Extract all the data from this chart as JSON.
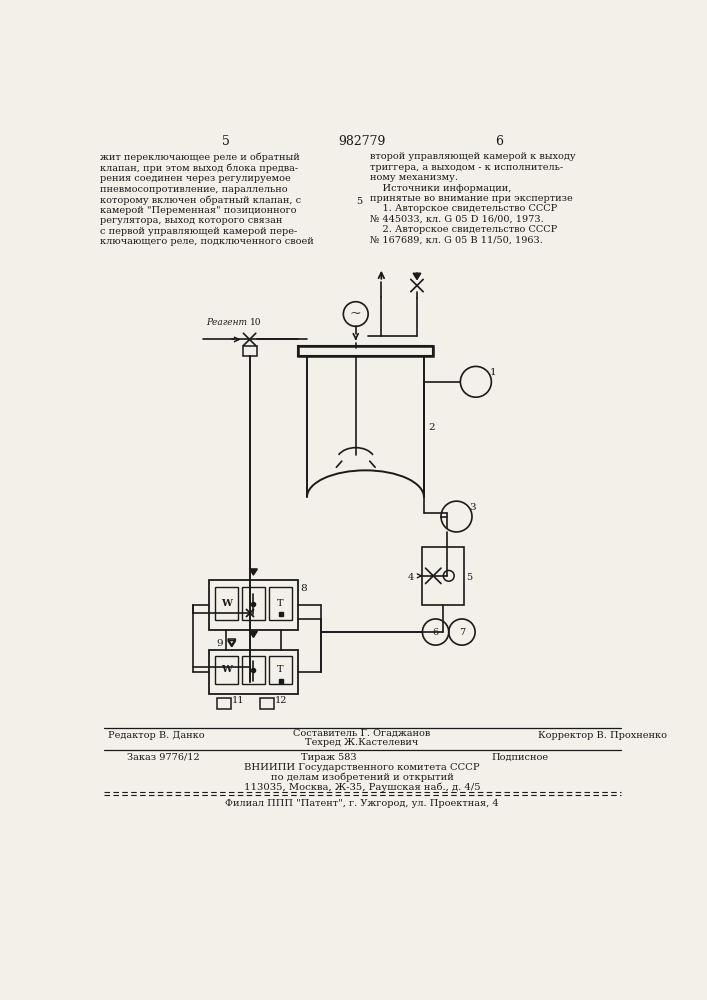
{
  "page_color": "#f2f0e8",
  "line_color": "#1a1a1a",
  "text_color": "#1a1a1a",
  "patent_number": "982779",
  "page_num_left": "5",
  "page_num_right": "6",
  "text_left": "жит переключающее реле и обратный\nклапан, при этом выход блока предва-\nрения соединен через регулируемое\nпневмосопротивление, параллельно\nкоторому включен обратный клапан, с\nкамерой \"Переменная\" позиционного\nрегулятора, выход которого связан\nс первой управляющей камерой пере-\nключающего реле, подключенного своей",
  "text_right": "второй управляющей камерой к выходу\nтриггера, а выходом - к исполнитель-\nному механизму.\n    Источники информации,\nпринятые во внимание при экспертизе\n    1. Авторское свидетельство СССР\n№ 445033, кл. G 05 D 16/00, 1973.\n    2. Авторское свидетельство СССР\n№ 167689, кл. G 05 B 11/50, 1963.",
  "label_5": "5",
  "bottom": {
    "editor": "Редактор В. Данко",
    "composer": "Составитель Г. Огаджанов",
    "techred": "Техред Ж.Кастелевич",
    "corrector": "Корректор В. Прохненко",
    "order": "Заказ 9776/12",
    "circulation": "Тираж 583",
    "subscription": "Подписное",
    "org1": "ВНИИПИ Государственного комитета СССР",
    "org2": "по делам изобретений и открытий",
    "address": "113035, Москва, Ж-35, Раушская наб., д. 4/5",
    "branch": "Филиал ППП \"Патент\", г. Ужгород, ул. Проектная, 4"
  }
}
